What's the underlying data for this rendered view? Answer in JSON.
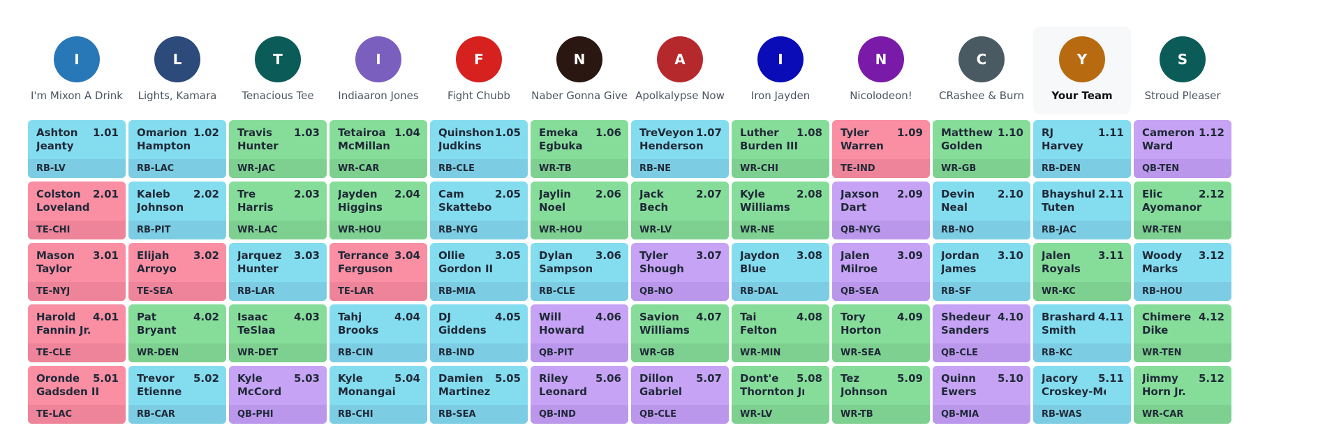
{
  "teams": [
    {
      "initial": "I",
      "name": "I'm Mixon A Drink",
      "color": "#2878b8"
    },
    {
      "initial": "L",
      "name": "Lights, Kamara",
      "color": "#2c4a7a"
    },
    {
      "initial": "T",
      "name": "Tenacious Tee",
      "color": "#0b5c58"
    },
    {
      "initial": "I",
      "name": "Indiaaron Jones",
      "color": "#7b5fbf"
    },
    {
      "initial": "F",
      "name": "Fight Chubb",
      "color": "#d6211f"
    },
    {
      "initial": "N",
      "name": "Naber Gonna Give",
      "color": "#2b1712"
    },
    {
      "initial": "A",
      "name": "Apolkalypse Now",
      "color": "#b5282c"
    },
    {
      "initial": "I",
      "name": "Iron Jayden",
      "color": "#0a0cb8"
    },
    {
      "initial": "N",
      "name": "Nicolodeon!",
      "color": "#7a1aa8"
    },
    {
      "initial": "C",
      "name": "CRashee & Burn",
      "color": "#4a5a63"
    },
    {
      "initial": "Y",
      "name": "Your Team",
      "color": "#b76a10",
      "active": true
    },
    {
      "initial": "S",
      "name": "Stroud Pleaser",
      "color": "#0b5c58"
    }
  ],
  "rounds": [
    [
      {
        "first": "Ashton",
        "last": "Jeanty",
        "num": "1.01",
        "pos": "RB",
        "tag": "RB-LV"
      },
      {
        "first": "Omarion",
        "last": "Hampton",
        "num": "1.02",
        "pos": "RB",
        "tag": "RB-LAC"
      },
      {
        "first": "Travis",
        "last": "Hunter",
        "num": "1.03",
        "pos": "WR",
        "tag": "WR-JAC"
      },
      {
        "first": "Tetairoa",
        "last": "McMillan",
        "num": "1.04",
        "pos": "WR",
        "tag": "WR-CAR"
      },
      {
        "first": "Quinshon",
        "last": "Judkins",
        "num": "1.05",
        "pos": "RB",
        "tag": "RB-CLE"
      },
      {
        "first": "Emeka",
        "last": "Egbuka",
        "num": "1.06",
        "pos": "WR",
        "tag": "WR-TB"
      },
      {
        "first": "TreVeyon",
        "last": "Henderson",
        "num": "1.07",
        "pos": "RB",
        "tag": "RB-NE"
      },
      {
        "first": "Luther",
        "last": "Burden III",
        "num": "1.08",
        "pos": "WR",
        "tag": "WR-CHI"
      },
      {
        "first": "Tyler",
        "last": "Warren",
        "num": "1.09",
        "pos": "TE",
        "tag": "TE-IND"
      },
      {
        "first": "Matthew",
        "last": "Golden",
        "num": "1.10",
        "pos": "WR",
        "tag": "WR-GB"
      },
      {
        "first": "RJ",
        "last": "Harvey",
        "num": "1.11",
        "pos": "RB",
        "tag": "RB-DEN"
      },
      {
        "first": "Cameron",
        "last": "Ward",
        "num": "1.12",
        "pos": "QB",
        "tag": "QB-TEN"
      }
    ],
    [
      {
        "first": "Colston",
        "last": "Loveland",
        "num": "2.01",
        "pos": "TE",
        "tag": "TE-CHI"
      },
      {
        "first": "Kaleb",
        "last": "Johnson",
        "num": "2.02",
        "pos": "RB",
        "tag": "RB-PIT"
      },
      {
        "first": "Tre",
        "last": "Harris",
        "num": "2.03",
        "pos": "WR",
        "tag": "WR-LAC"
      },
      {
        "first": "Jayden",
        "last": "Higgins",
        "num": "2.04",
        "pos": "WR",
        "tag": "WR-HOU"
      },
      {
        "first": "Cam",
        "last": "Skattebo",
        "num": "2.05",
        "pos": "RB",
        "tag": "RB-NYG"
      },
      {
        "first": "Jaylin",
        "last": "Noel",
        "num": "2.06",
        "pos": "WR",
        "tag": "WR-HOU"
      },
      {
        "first": "Jack",
        "last": "Bech",
        "num": "2.07",
        "pos": "WR",
        "tag": "WR-LV"
      },
      {
        "first": "Kyle",
        "last": "Williams",
        "num": "2.08",
        "pos": "WR",
        "tag": "WR-NE"
      },
      {
        "first": "Jaxson",
        "last": "Dart",
        "num": "2.09",
        "pos": "QB",
        "tag": "QB-NYG"
      },
      {
        "first": "Devin",
        "last": "Neal",
        "num": "2.10",
        "pos": "RB",
        "tag": "RB-NO"
      },
      {
        "first": "Bhayshul",
        "last": "Tuten",
        "num": "2.11",
        "pos": "RB",
        "tag": "RB-JAC"
      },
      {
        "first": "Elic",
        "last": "Ayomanor",
        "num": "2.12",
        "pos": "WR",
        "tag": "WR-TEN"
      }
    ],
    [
      {
        "first": "Mason",
        "last": "Taylor",
        "num": "3.01",
        "pos": "TE",
        "tag": "TE-NYJ"
      },
      {
        "first": "Elijah",
        "last": "Arroyo",
        "num": "3.02",
        "pos": "TE",
        "tag": "TE-SEA"
      },
      {
        "first": "Jarquez",
        "last": "Hunter",
        "num": "3.03",
        "pos": "RB",
        "tag": "RB-LAR"
      },
      {
        "first": "Terrance",
        "last": "Ferguson",
        "num": "3.04",
        "pos": "TE",
        "tag": "TE-LAR"
      },
      {
        "first": "Ollie",
        "last": "Gordon II",
        "num": "3.05",
        "pos": "RB",
        "tag": "RB-MIA"
      },
      {
        "first": "Dylan",
        "last": "Sampson",
        "num": "3.06",
        "pos": "RB",
        "tag": "RB-CLE"
      },
      {
        "first": "Tyler",
        "last": "Shough",
        "num": "3.07",
        "pos": "QB",
        "tag": "QB-NO"
      },
      {
        "first": "Jaydon",
        "last": "Blue",
        "num": "3.08",
        "pos": "RB",
        "tag": "RB-DAL"
      },
      {
        "first": "Jalen",
        "last": "Milroe",
        "num": "3.09",
        "pos": "QB",
        "tag": "QB-SEA"
      },
      {
        "first": "Jordan",
        "last": "James",
        "num": "3.10",
        "pos": "RB",
        "tag": "RB-SF"
      },
      {
        "first": "Jalen",
        "last": "Royals",
        "num": "3.11",
        "pos": "WR",
        "tag": "WR-KC"
      },
      {
        "first": "Woody",
        "last": "Marks",
        "num": "3.12",
        "pos": "RB",
        "tag": "RB-HOU"
      }
    ],
    [
      {
        "first": "Harold",
        "last": "Fannin Jr.",
        "num": "4.01",
        "pos": "TE",
        "tag": "TE-CLE"
      },
      {
        "first": "Pat",
        "last": "Bryant",
        "num": "4.02",
        "pos": "WR",
        "tag": "WR-DEN"
      },
      {
        "first": "Isaac",
        "last": "TeSlaa",
        "num": "4.03",
        "pos": "WR",
        "tag": "WR-DET"
      },
      {
        "first": "Tahj",
        "last": "Brooks",
        "num": "4.04",
        "pos": "RB",
        "tag": "RB-CIN"
      },
      {
        "first": "DJ",
        "last": "Giddens",
        "num": "4.05",
        "pos": "RB",
        "tag": "RB-IND"
      },
      {
        "first": "Will",
        "last": "Howard",
        "num": "4.06",
        "pos": "QB",
        "tag": "QB-PIT"
      },
      {
        "first": "Savion",
        "last": "Williams",
        "num": "4.07",
        "pos": "WR",
        "tag": "WR-GB"
      },
      {
        "first": "Tai",
        "last": "Felton",
        "num": "4.08",
        "pos": "WR",
        "tag": "WR-MIN"
      },
      {
        "first": "Tory",
        "last": "Horton",
        "num": "4.09",
        "pos": "WR",
        "tag": "WR-SEA"
      },
      {
        "first": "Shedeur",
        "last": "Sanders",
        "num": "4.10",
        "pos": "QB",
        "tag": "QB-CLE"
      },
      {
        "first": "Brashard",
        "last": "Smith",
        "num": "4.11",
        "pos": "RB",
        "tag": "RB-KC"
      },
      {
        "first": "Chimere",
        "last": "Dike",
        "num": "4.12",
        "pos": "WR",
        "tag": "WR-TEN"
      }
    ],
    [
      {
        "first": "Oronde",
        "last": "Gadsden II",
        "num": "5.01",
        "pos": "TE",
        "tag": "TE-LAC"
      },
      {
        "first": "Trevor",
        "last": "Etienne",
        "num": "5.02",
        "pos": "RB",
        "tag": "RB-CAR"
      },
      {
        "first": "Kyle",
        "last": "McCord",
        "num": "5.03",
        "pos": "QB",
        "tag": "QB-PHI"
      },
      {
        "first": "Kyle",
        "last": "Monangai",
        "num": "5.04",
        "pos": "RB",
        "tag": "RB-CHI"
      },
      {
        "first": "Damien",
        "last": "Martinez",
        "num": "5.05",
        "pos": "RB",
        "tag": "RB-SEA"
      },
      {
        "first": "Riley",
        "last": "Leonard",
        "num": "5.06",
        "pos": "QB",
        "tag": "QB-IND"
      },
      {
        "first": "Dillon",
        "last": "Gabriel",
        "num": "5.07",
        "pos": "QB",
        "tag": "QB-CLE"
      },
      {
        "first": "Dont'e",
        "last": "Thornton Jr.",
        "num": "5.08",
        "pos": "WR",
        "tag": "WR-LV"
      },
      {
        "first": "Tez",
        "last": "Johnson",
        "num": "5.09",
        "pos": "WR",
        "tag": "WR-TB"
      },
      {
        "first": "Quinn",
        "last": "Ewers",
        "num": "5.10",
        "pos": "QB",
        "tag": "QB-MIA"
      },
      {
        "first": "Jacory",
        "last": "Croskey-Merritt",
        "num": "5.11",
        "pos": "RB",
        "tag": "RB-WAS"
      },
      {
        "first": "Jimmy",
        "last": "Horn Jr.",
        "num": "5.12",
        "pos": "WR",
        "tag": "WR-CAR"
      }
    ]
  ]
}
